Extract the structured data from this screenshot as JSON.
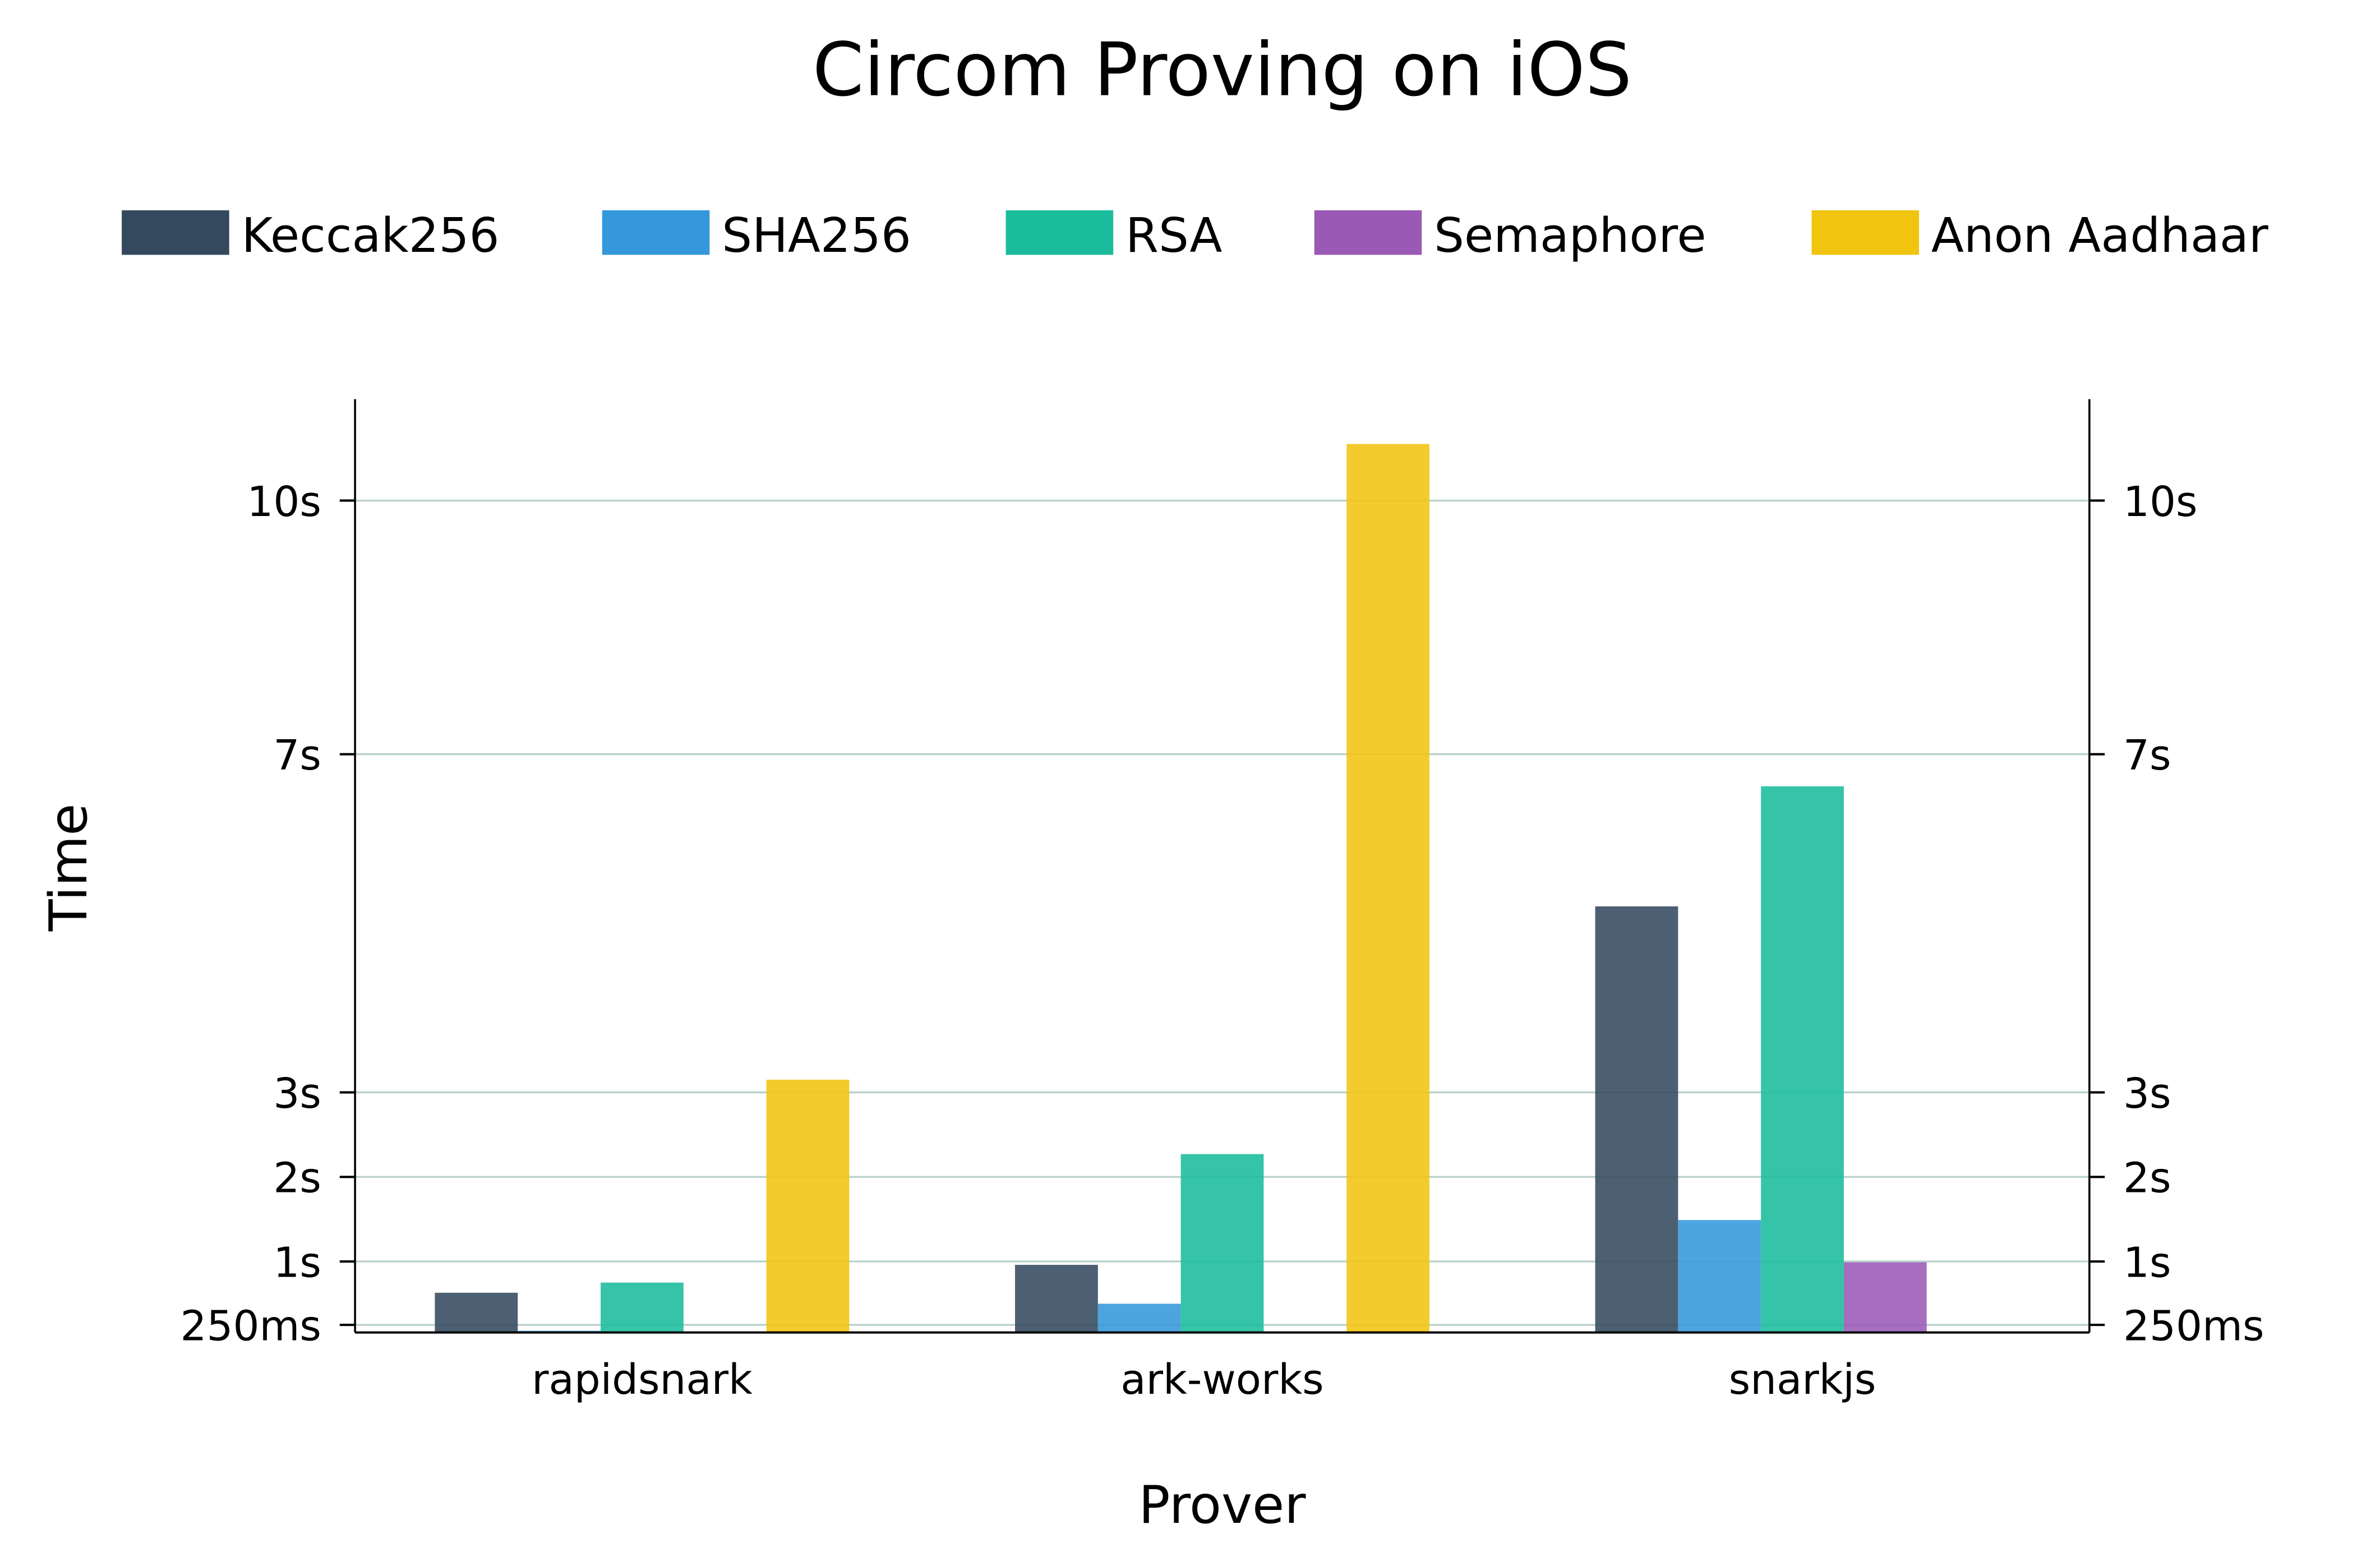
{
  "chart_data": {
    "type": "bar",
    "title": "Circom Proving on iOS",
    "xlabel": "Prover",
    "ylabel": "Time",
    "categories": [
      "rapidsnark",
      "ark-works",
      "snarkjs"
    ],
    "ylim": [
      0.16,
      11.2
    ],
    "yticks": [
      {
        "value": 0.25,
        "label": "250ms"
      },
      {
        "value": 1,
        "label": "1s"
      },
      {
        "value": 2,
        "label": "2s"
      },
      {
        "value": 3,
        "label": "3s"
      },
      {
        "value": 7,
        "label": "7s"
      },
      {
        "value": 10,
        "label": "10s"
      }
    ],
    "grid": true,
    "mirror_y_axis_right": true,
    "legend_placement": "top",
    "series": [
      {
        "name": "Keccak256",
        "color": "#34495e",
        "values": [
          0.63,
          0.96,
          5.2
        ]
      },
      {
        "name": "SHA256",
        "color": "#3498db",
        "values": [
          0.18,
          0.5,
          1.49
        ]
      },
      {
        "name": "RSA",
        "color": "#1abc9c",
        "values": [
          0.75,
          2.27,
          6.62
        ]
      },
      {
        "name": "Semaphore",
        "color": "#9b59b6",
        "values": [
          null,
          null,
          0.99
        ]
      },
      {
        "name": "Anon Aadhaar",
        "color": "#f1c40f",
        "values": [
          3.15,
          10.67,
          null
        ]
      }
    ]
  }
}
